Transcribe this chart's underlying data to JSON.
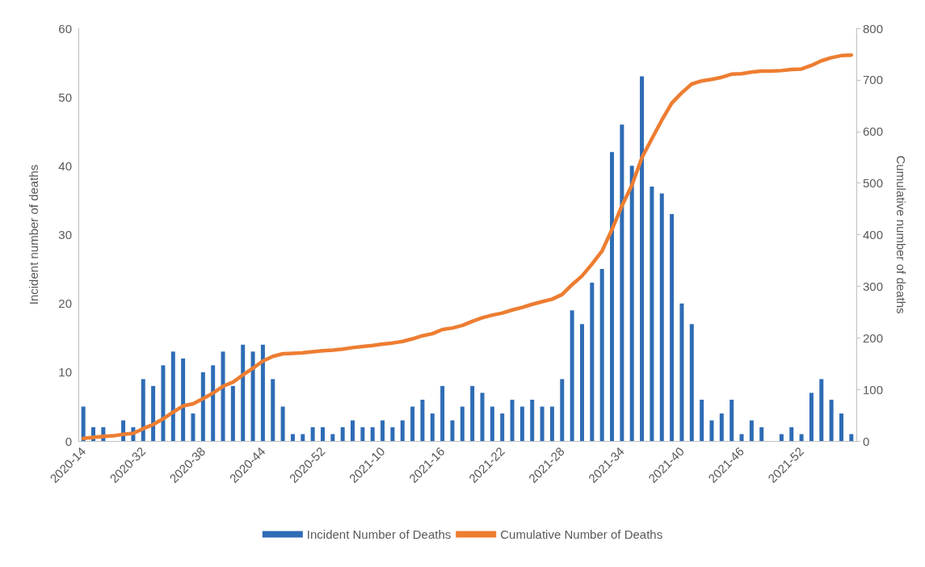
{
  "chart_data": {
    "type": "bar",
    "xlabel": null,
    "ylabel": "Incident number of deaths",
    "y2label": "Cumulative number of deaths",
    "categories": [
      "2020-14",
      null,
      null,
      null,
      null,
      null,
      "2020-32",
      null,
      null,
      null,
      null,
      null,
      "2020-38",
      null,
      null,
      null,
      null,
      null,
      "2020-44",
      null,
      null,
      null,
      null,
      null,
      "2020-52",
      null,
      null,
      null,
      null,
      null,
      "2021-10",
      null,
      null,
      null,
      null,
      null,
      "2021-16",
      null,
      null,
      null,
      null,
      null,
      "2021-22",
      null,
      null,
      null,
      null,
      null,
      "2021-28",
      null,
      null,
      null,
      null,
      null,
      "2021-34",
      null,
      null,
      null,
      null,
      null,
      "2021-40",
      null,
      null,
      null,
      null,
      null,
      "2021-46",
      null,
      null,
      null,
      null,
      null,
      "2021-52",
      null,
      null,
      null,
      null,
      null
    ],
    "series": [
      {
        "name": "Incident Number of Deaths",
        "color": "#2e6cb5",
        "values": [
          5,
          2,
          2,
          null,
          3,
          2,
          9,
          8,
          11,
          13,
          12,
          4,
          10,
          11,
          13,
          8,
          14,
          13,
          14,
          9,
          5,
          1,
          1,
          2,
          2,
          1,
          2,
          3,
          2,
          2,
          3,
          2,
          3,
          5,
          6,
          4,
          8,
          3,
          5,
          8,
          7,
          5,
          4,
          6,
          5,
          6,
          5,
          5,
          9,
          19,
          17,
          23,
          25,
          42,
          46,
          40,
          53,
          37,
          36,
          33,
          20,
          17,
          6,
          3,
          4,
          6,
          1,
          3,
          2,
          0,
          1,
          2,
          1,
          7,
          9,
          6,
          4,
          1
        ]
      },
      {
        "name": "Cumulative Number of Deaths",
        "type": "line",
        "axis": "y2",
        "color": "#ed7d31",
        "values": [
          5,
          7,
          9,
          10,
          13,
          15,
          24,
          32,
          43,
          56,
          68,
          72,
          82,
          93,
          106,
          114,
          128,
          141,
          155,
          164,
          169,
          170,
          171,
          173,
          175,
          176,
          178,
          181,
          183,
          185,
          188,
          190,
          193,
          198,
          204,
          208,
          216,
          219,
          224,
          232,
          239,
          244,
          248,
          254,
          259,
          265,
          270,
          275,
          284,
          303,
          320,
          343,
          368,
          410,
          456,
          496,
          549,
          586,
          622,
          655,
          675,
          692,
          698,
          701,
          705,
          711,
          712,
          715,
          717,
          717,
          718,
          720,
          721,
          728,
          737,
          743,
          747,
          748
        ]
      }
    ],
    "ylim": [
      0,
      60
    ],
    "yticks": [
      0,
      10,
      20,
      30,
      40,
      50,
      60
    ],
    "y2lim": [
      0,
      800
    ],
    "y2ticks": [
      0,
      100,
      200,
      300,
      400,
      500,
      600,
      700,
      800
    ],
    "grid": false,
    "legend": "bottom",
    "marker": "none",
    "line_style": "solid"
  }
}
